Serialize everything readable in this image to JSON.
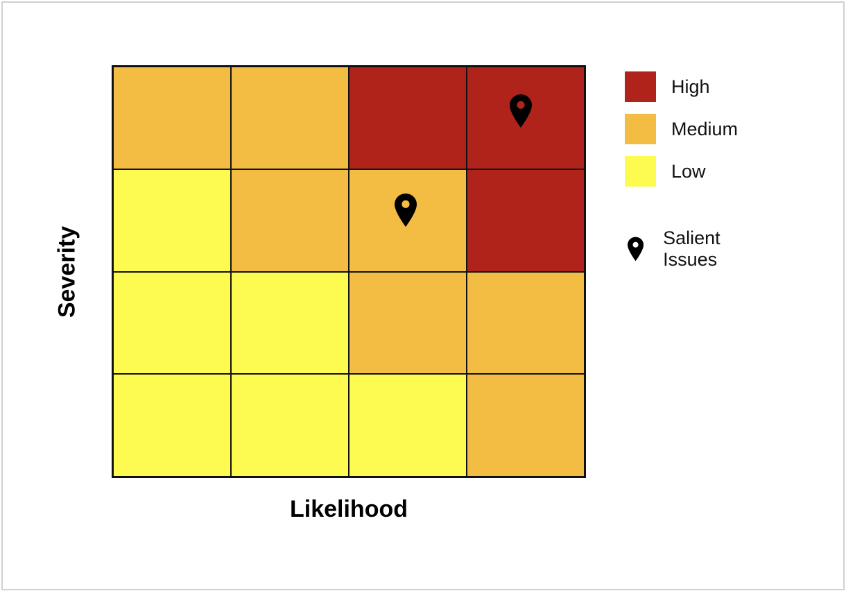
{
  "chart_data": {
    "type": "heatmap",
    "title": "",
    "xlabel": "Likelihood",
    "ylabel": "Severity",
    "rows": 4,
    "cols": 4,
    "row_order": "top-to-bottom = highest to lowest severity",
    "col_order": "left-to-right = lowest to highest likelihood",
    "cells": [
      [
        "Medium",
        "Medium",
        "High",
        "High"
      ],
      [
        "Low",
        "Medium",
        "Medium",
        "High"
      ],
      [
        "Low",
        "Low",
        "Medium",
        "Medium"
      ],
      [
        "Low",
        "Low",
        "Low",
        "Medium"
      ]
    ],
    "markers": [
      {
        "label": "Salient Issues",
        "row": 0,
        "col": 3
      },
      {
        "label": "Salient Issues",
        "row": 1,
        "col": 2
      }
    ],
    "legend": [
      {
        "label": "High",
        "color": "#b0231a"
      },
      {
        "label": "Medium",
        "color": "#f3bd44"
      },
      {
        "label": "Low",
        "color": "#fefb50"
      },
      {
        "label": "Salient Issues",
        "icon": "map-pin-icon"
      }
    ],
    "legend_position": "right",
    "grid": true
  },
  "colors": {
    "High": "#b0231a",
    "Medium": "#f3bd44",
    "Low": "#fefb50"
  },
  "axes": {
    "x_label": "Likelihood",
    "y_label": "Severity"
  },
  "legend": {
    "high": "High",
    "medium": "Medium",
    "low": "Low",
    "salient": "Salient Issues"
  }
}
